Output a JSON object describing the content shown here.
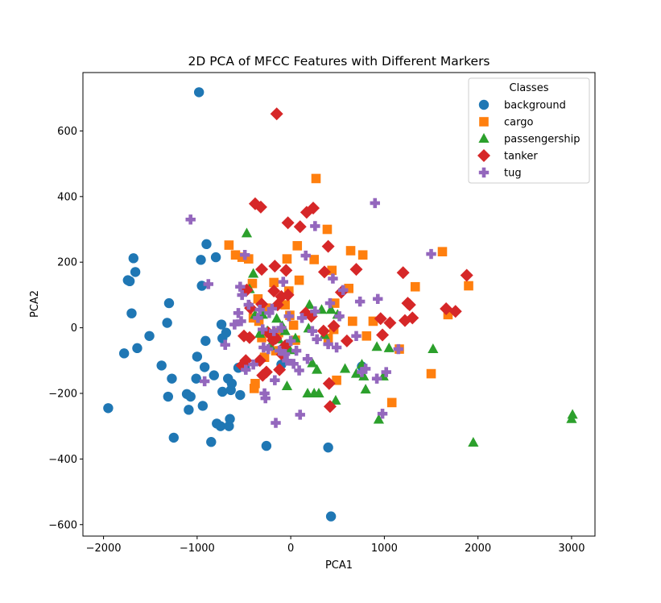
{
  "chart_data": {
    "type": "scatter",
    "title": "2D PCA of MFCC Features with Different Markers",
    "xlabel": "PCA1",
    "ylabel": "PCA2",
    "xlim": [
      -2220,
      3250
    ],
    "ylim": [
      -635,
      778
    ],
    "xticks": [
      -2000,
      -1000,
      0,
      1000,
      2000,
      3000
    ],
    "yticks": [
      -600,
      -400,
      -200,
      0,
      200,
      400,
      600
    ],
    "grid": false,
    "legend": {
      "title": "Classes",
      "placement": "top-right"
    },
    "series": [
      {
        "name": "background",
        "marker": "circle",
        "color": "#1f77b4",
        "points": [
          [
            -980,
            718
          ],
          [
            -1950,
            -245
          ],
          [
            -1780,
            -78
          ],
          [
            -1740,
            145
          ],
          [
            -1680,
            212
          ],
          [
            -1660,
            170
          ],
          [
            -1720,
            142
          ],
          [
            -1700,
            44
          ],
          [
            -1640,
            -62
          ],
          [
            -1510,
            -25
          ],
          [
            -1380,
            -115
          ],
          [
            -1320,
            15
          ],
          [
            -1300,
            75
          ],
          [
            -1310,
            -210
          ],
          [
            -1270,
            -155
          ],
          [
            -1250,
            -335
          ],
          [
            -1110,
            -202
          ],
          [
            -1090,
            -250
          ],
          [
            -1070,
            -210
          ],
          [
            -1000,
            -88
          ],
          [
            -1010,
            -155
          ],
          [
            -960,
            207
          ],
          [
            -950,
            128
          ],
          [
            -900,
            255
          ],
          [
            -910,
            -40
          ],
          [
            -920,
            -120
          ],
          [
            -940,
            -238
          ],
          [
            -850,
            -348
          ],
          [
            -820,
            -145
          ],
          [
            -800,
            215
          ],
          [
            -790,
            -292
          ],
          [
            -750,
            -300
          ],
          [
            -740,
            10
          ],
          [
            -730,
            -195
          ],
          [
            -730,
            -32
          ],
          [
            -690,
            -15
          ],
          [
            -670,
            -155
          ],
          [
            -660,
            -300
          ],
          [
            -650,
            -278
          ],
          [
            -640,
            -190
          ],
          [
            -630,
            -170
          ],
          [
            -560,
            -122
          ],
          [
            -540,
            -205
          ],
          [
            -490,
            -120
          ],
          [
            -260,
            -360
          ],
          [
            -100,
            -112
          ],
          [
            400,
            -365
          ],
          [
            430,
            -575
          ],
          [
            760,
            -118
          ]
        ]
      },
      {
        "name": "cargo",
        "marker": "square",
        "color": "#ff7f0e",
        "points": [
          [
            -660,
            252
          ],
          [
            -590,
            222
          ],
          [
            -520,
            215
          ],
          [
            -450,
            210
          ],
          [
            -410,
            135
          ],
          [
            -400,
            30
          ],
          [
            -390,
            -185
          ],
          [
            -380,
            -170
          ],
          [
            -350,
            88
          ],
          [
            -340,
            20
          ],
          [
            -310,
            -30
          ],
          [
            -280,
            -90
          ],
          [
            -260,
            60
          ],
          [
            -180,
            138
          ],
          [
            -160,
            -70
          ],
          [
            -130,
            -15
          ],
          [
            -60,
            70
          ],
          [
            -40,
            210
          ],
          [
            -20,
            112
          ],
          [
            -10,
            38
          ],
          [
            30,
            8
          ],
          [
            50,
            -38
          ],
          [
            70,
            250
          ],
          [
            90,
            145
          ],
          [
            250,
            208
          ],
          [
            270,
            455
          ],
          [
            390,
            300
          ],
          [
            400,
            -32
          ],
          [
            440,
            175
          ],
          [
            460,
            -5
          ],
          [
            470,
            75
          ],
          [
            490,
            -160
          ],
          [
            620,
            120
          ],
          [
            640,
            235
          ],
          [
            660,
            20
          ],
          [
            770,
            222
          ],
          [
            810,
            -25
          ],
          [
            880,
            20
          ],
          [
            1080,
            -228
          ],
          [
            1160,
            -65
          ],
          [
            1330,
            125
          ],
          [
            1500,
            -140
          ],
          [
            1620,
            232
          ],
          [
            1680,
            40
          ],
          [
            1900,
            128
          ]
        ]
      },
      {
        "name": "passengership",
        "marker": "triangle",
        "color": "#2ca02c",
        "points": [
          [
            -470,
            288
          ],
          [
            -440,
            118
          ],
          [
            -400,
            165
          ],
          [
            -380,
            40
          ],
          [
            -330,
            -18
          ],
          [
            -300,
            40
          ],
          [
            -250,
            -10
          ],
          [
            -220,
            -55
          ],
          [
            -150,
            28
          ],
          [
            -130,
            -35
          ],
          [
            -90,
            5
          ],
          [
            -60,
            -10
          ],
          [
            -40,
            -178
          ],
          [
            -10,
            -68
          ],
          [
            50,
            -32
          ],
          [
            180,
            -200
          ],
          [
            190,
            -2
          ],
          [
            200,
            70
          ],
          [
            230,
            -108
          ],
          [
            250,
            -200
          ],
          [
            280,
            -128
          ],
          [
            300,
            -200
          ],
          [
            330,
            55
          ],
          [
            360,
            -22
          ],
          [
            430,
            55
          ],
          [
            480,
            -222
          ],
          [
            500,
            40
          ],
          [
            580,
            -125
          ],
          [
            700,
            -140
          ],
          [
            760,
            -112
          ],
          [
            780,
            -148
          ],
          [
            800,
            -188
          ],
          [
            920,
            -58
          ],
          [
            940,
            -280
          ],
          [
            990,
            -148
          ],
          [
            1050,
            -62
          ],
          [
            1520,
            -65
          ],
          [
            1950,
            -350
          ],
          [
            3000,
            -278
          ],
          [
            3010,
            -265
          ]
        ]
      },
      {
        "name": "tanker",
        "marker": "diamond",
        "color": "#d62728",
        "points": [
          [
            -150,
            652
          ],
          [
            -380,
            378
          ],
          [
            -320,
            368
          ],
          [
            -30,
            320
          ],
          [
            100,
            308
          ],
          [
            170,
            352
          ],
          [
            240,
            365
          ],
          [
            400,
            248
          ],
          [
            -310,
            178
          ],
          [
            -170,
            188
          ],
          [
            -50,
            175
          ],
          [
            1200,
            168
          ],
          [
            1880,
            160
          ],
          [
            360,
            170
          ],
          [
            700,
            178
          ],
          [
            540,
            108
          ],
          [
            -470,
            115
          ],
          [
            -430,
            60
          ],
          [
            -310,
            72
          ],
          [
            -180,
            112
          ],
          [
            -500,
            -25
          ],
          [
            -440,
            -30
          ],
          [
            -480,
            -100
          ],
          [
            -520,
            -115
          ],
          [
            -330,
            -100
          ],
          [
            -300,
            -145
          ],
          [
            -260,
            -135
          ],
          [
            -240,
            -15
          ],
          [
            -190,
            -38
          ],
          [
            -160,
            -32
          ],
          [
            -120,
            -128
          ],
          [
            -90,
            -82
          ],
          [
            -60,
            -55
          ],
          [
            -140,
            70
          ],
          [
            -100,
            95
          ],
          [
            -30,
            100
          ],
          [
            160,
            45
          ],
          [
            220,
            35
          ],
          [
            350,
            -10
          ],
          [
            410,
            -170
          ],
          [
            420,
            -240
          ],
          [
            460,
            5
          ],
          [
            600,
            -40
          ],
          [
            960,
            28
          ],
          [
            980,
            -22
          ],
          [
            1060,
            15
          ],
          [
            1220,
            22
          ],
          [
            1250,
            75
          ],
          [
            1270,
            70
          ],
          [
            1300,
            30
          ],
          [
            1660,
            58
          ],
          [
            1760,
            50
          ]
        ]
      },
      {
        "name": "tug",
        "marker": "plus",
        "color": "#9467bd",
        "points": [
          [
            -1070,
            330
          ],
          [
            -880,
            133
          ],
          [
            -920,
            -163
          ],
          [
            -700,
            -52
          ],
          [
            -560,
            45
          ],
          [
            -540,
            125
          ],
          [
            -530,
            20
          ],
          [
            -520,
            100
          ],
          [
            -490,
            222
          ],
          [
            -480,
            -128
          ],
          [
            -450,
            70
          ],
          [
            -400,
            -112
          ],
          [
            -330,
            55
          ],
          [
            -300,
            -5
          ],
          [
            -290,
            -60
          ],
          [
            -280,
            -200
          ],
          [
            -270,
            -215
          ],
          [
            -240,
            -65
          ],
          [
            -230,
            45
          ],
          [
            -200,
            58
          ],
          [
            -180,
            -10
          ],
          [
            -170,
            -160
          ],
          [
            -160,
            -290
          ],
          [
            -120,
            -70
          ],
          [
            -100,
            0
          ],
          [
            -80,
            140
          ],
          [
            -60,
            -80
          ],
          [
            -40,
            -100
          ],
          [
            -20,
            35
          ],
          [
            0,
            -40
          ],
          [
            30,
            -110
          ],
          [
            60,
            -70
          ],
          [
            90,
            -130
          ],
          [
            100,
            -265
          ],
          [
            120,
            30
          ],
          [
            160,
            220
          ],
          [
            180,
            -95
          ],
          [
            230,
            -10
          ],
          [
            260,
            310
          ],
          [
            280,
            -35
          ],
          [
            400,
            -50
          ],
          [
            420,
            75
          ],
          [
            450,
            150
          ],
          [
            490,
            -60
          ],
          [
            520,
            35
          ],
          [
            560,
            115
          ],
          [
            700,
            -25
          ],
          [
            740,
            80
          ],
          [
            760,
            -135
          ],
          [
            800,
            -125
          ],
          [
            900,
            380
          ],
          [
            920,
            -155
          ],
          [
            930,
            88
          ],
          [
            980,
            -262
          ],
          [
            1020,
            -135
          ],
          [
            1150,
            -65
          ],
          [
            1500,
            225
          ],
          [
            260,
            50
          ],
          [
            -350,
            30
          ],
          [
            -600,
            10
          ]
        ]
      }
    ]
  }
}
